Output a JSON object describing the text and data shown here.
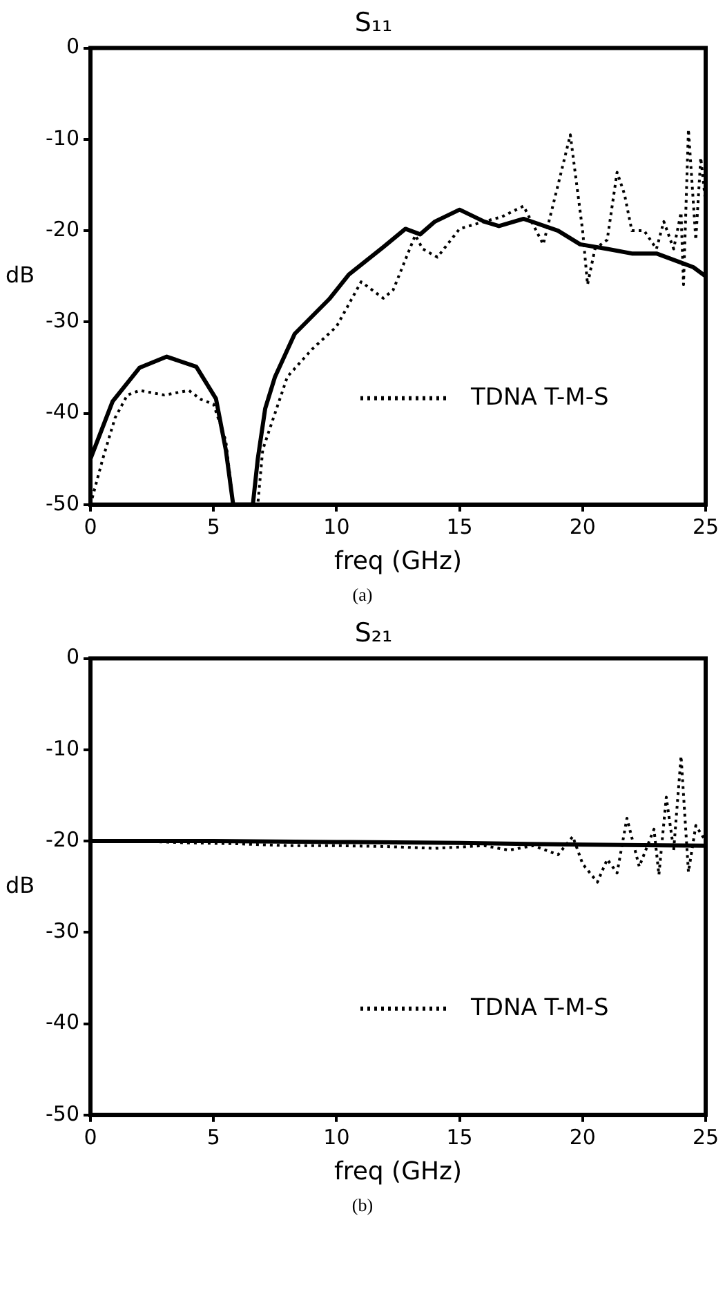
{
  "chart_data": [
    {
      "type": "line",
      "title": "S₁₁",
      "xlabel": "freq (GHz)",
      "ylabel": "dB",
      "annotations": [
        "(a)"
      ],
      "xlim": [
        0,
        25
      ],
      "ylim": [
        -50,
        0
      ],
      "xticks": [
        0,
        5,
        10,
        15,
        20,
        25
      ],
      "yticks": [
        0,
        -10,
        -20,
        -30,
        -40,
        -50
      ],
      "grid": false,
      "legend": "bottom right",
      "marker": "none",
      "series": [
        {
          "name": "TDNA T-M-S",
          "color": "#000000",
          "line_style": "dotted",
          "x": [
            0,
            0.5,
            1,
            1.5,
            2,
            3,
            4,
            4.5,
            5,
            5.5,
            5.8,
            6.8,
            7,
            7.5,
            8,
            9,
            10,
            11,
            11.9,
            12.3,
            13.2,
            13.5,
            14.1,
            15,
            16,
            16.7,
            17.6,
            18.4,
            19,
            19.5,
            20,
            20.2,
            20.5,
            21,
            21.4,
            21.7,
            22,
            22.5,
            23,
            23.3,
            23.7,
            24,
            24.1,
            24.3,
            24.6,
            24.8,
            25
          ],
          "values": [
            -50,
            -45,
            -40.5,
            -38,
            -37.5,
            -38,
            -37.5,
            -38.5,
            -39,
            -43,
            -50,
            -50,
            -44,
            -40,
            -36,
            -33,
            -30.5,
            -25.6,
            -27.4,
            -26.5,
            -20.5,
            -22,
            -22.9,
            -19.8,
            -19,
            -18.5,
            -17.3,
            -21.5,
            -15,
            -9.5,
            -20,
            -25.9,
            -22,
            -21,
            -13.6,
            -16,
            -20,
            -20,
            -22,
            -19,
            -22,
            -18,
            -25.9,
            -8.9,
            -21,
            -12,
            -17
          ]
        },
        {
          "color": "#000000",
          "line_style": "solid",
          "x": [
            0,
            0.9,
            2,
            3.1,
            4.3,
            5.1,
            5.5,
            5.8,
            6.6,
            6.8,
            7.1,
            7.5,
            8.3,
            9.7,
            10.5,
            11.9,
            12.8,
            13.4,
            14,
            15,
            16,
            16.6,
            17.6,
            19,
            19.9,
            21,
            22,
            23,
            24,
            24.5,
            25
          ],
          "values": [
            -45,
            -38.7,
            -35,
            -33.8,
            -34.9,
            -38.4,
            -44,
            -50,
            -50,
            -45,
            -39.5,
            -36,
            -31.3,
            -27.5,
            -24.8,
            -21.8,
            -19.8,
            -20.4,
            -19,
            -17.7,
            -19,
            -19.5,
            -18.7,
            -20,
            -21.5,
            -22,
            -22.5,
            -22.5,
            -23.5,
            -24,
            -25
          ]
        }
      ]
    },
    {
      "type": "line",
      "title": "S₂₁",
      "xlabel": "freq (GHz)",
      "ylabel": "dB",
      "annotations": [
        "(b)"
      ],
      "xlim": [
        0,
        25
      ],
      "ylim": [
        -50,
        0
      ],
      "xticks": [
        0,
        5,
        10,
        15,
        20,
        25
      ],
      "yticks": [
        0,
        -10,
        -20,
        -30,
        -40,
        -50
      ],
      "grid": false,
      "legend": "bottom right",
      "marker": "none",
      "series": [
        {
          "name": "TDNA T-M-S",
          "color": "#000000",
          "line_style": "dotted",
          "x": [
            0,
            2,
            4,
            6,
            8,
            10,
            12,
            14,
            16,
            17,
            18,
            19,
            19.6,
            20,
            20.6,
            21,
            21.4,
            21.8,
            22.3,
            22.9,
            23.1,
            23.4,
            23.7,
            24,
            24.3,
            24.6,
            25
          ],
          "values": [
            -20,
            -20,
            -20.2,
            -20.3,
            -20.5,
            -20.5,
            -20.6,
            -20.8,
            -20.5,
            -21,
            -20.5,
            -21.5,
            -19.5,
            -22.5,
            -24.5,
            -22,
            -23.5,
            -17.5,
            -22.8,
            -18.7,
            -23.7,
            -15.2,
            -21,
            -10.7,
            -23.4,
            -18.3,
            -20
          ]
        },
        {
          "color": "#000000",
          "line_style": "solid",
          "x": [
            0,
            5,
            10,
            15,
            20,
            25
          ],
          "values": [
            -20,
            -20,
            -20.1,
            -20.2,
            -20.4,
            -20.5
          ]
        }
      ]
    }
  ]
}
